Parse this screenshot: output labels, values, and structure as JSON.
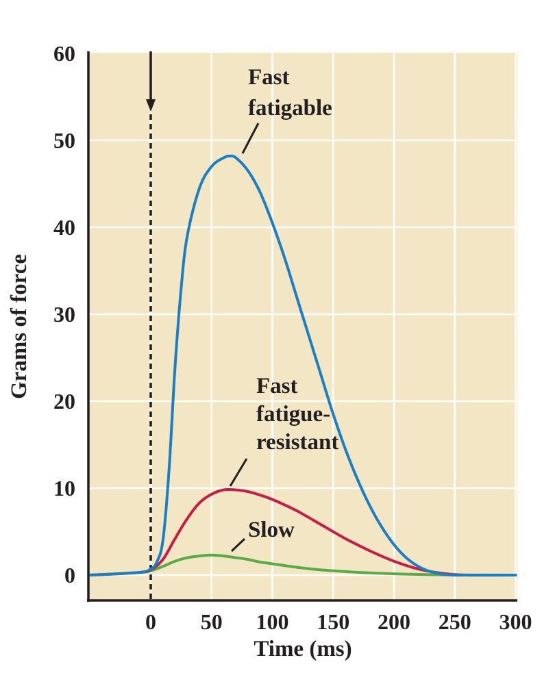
{
  "chart_data": {
    "type": "line",
    "title": "",
    "xlabel": "Time (ms)",
    "ylabel": "Grams of force",
    "xlim": [
      -50,
      300
    ],
    "ylim": [
      0,
      60
    ],
    "x_ticks": [
      "0",
      "50",
      "100",
      "150",
      "200",
      "250",
      "300"
    ],
    "y_ticks": [
      "0",
      "10",
      "20",
      "30",
      "40",
      "50",
      "60"
    ],
    "grid": true,
    "stimulus_marker": {
      "x": 0,
      "style": "dashed line with downward arrow"
    },
    "series": [
      {
        "name": "Fast fatigable",
        "label_lines": [
          "Fast",
          "fatigable"
        ],
        "color": "#1a7fc4",
        "x": [
          -50,
          -10,
          0,
          5,
          10,
          15,
          20,
          25,
          30,
          40,
          50,
          60,
          65,
          70,
          80,
          90,
          100,
          110,
          120,
          130,
          140,
          150,
          160,
          170,
          180,
          190,
          200,
          210,
          220,
          230,
          240,
          250,
          260,
          270,
          280,
          300
        ],
        "y": [
          0,
          0.3,
          0.7,
          1.5,
          4,
          12,
          24,
          33,
          39,
          44.5,
          47,
          48,
          48.2,
          48,
          46.5,
          44,
          40.5,
          36.5,
          32,
          27.5,
          23,
          18.5,
          14.5,
          11,
          8,
          5.5,
          3.5,
          2,
          1,
          0.4,
          0.1,
          0,
          0,
          0,
          0,
          0
        ]
      },
      {
        "name": "Fast fatigue-resistant",
        "label_lines": [
          "Fast",
          "fatigue-",
          "resistant"
        ],
        "color": "#c41e46",
        "x": [
          -50,
          -10,
          0,
          10,
          20,
          30,
          40,
          50,
          60,
          70,
          80,
          90,
          100,
          120,
          140,
          160,
          180,
          200,
          220,
          240,
          260,
          300
        ],
        "y": [
          0,
          0.3,
          0.6,
          1.8,
          4.2,
          6.5,
          8.3,
          9.3,
          9.8,
          9.8,
          9.6,
          9.2,
          8.7,
          7.4,
          5.8,
          4.2,
          2.8,
          1.6,
          0.7,
          0.2,
          0,
          0
        ]
      },
      {
        "name": "Slow",
        "label_lines": [
          "Slow"
        ],
        "color": "#5aaa45",
        "x": [
          -50,
          -10,
          0,
          10,
          20,
          30,
          40,
          50,
          60,
          70,
          80,
          90,
          100,
          120,
          140,
          160,
          180,
          200,
          220,
          250,
          300
        ],
        "y": [
          0,
          0.3,
          0.5,
          1.0,
          1.6,
          2.0,
          2.2,
          2.3,
          2.2,
          2.0,
          1.8,
          1.5,
          1.3,
          0.9,
          0.6,
          0.4,
          0.25,
          0.15,
          0.08,
          0.02,
          0
        ]
      }
    ]
  }
}
